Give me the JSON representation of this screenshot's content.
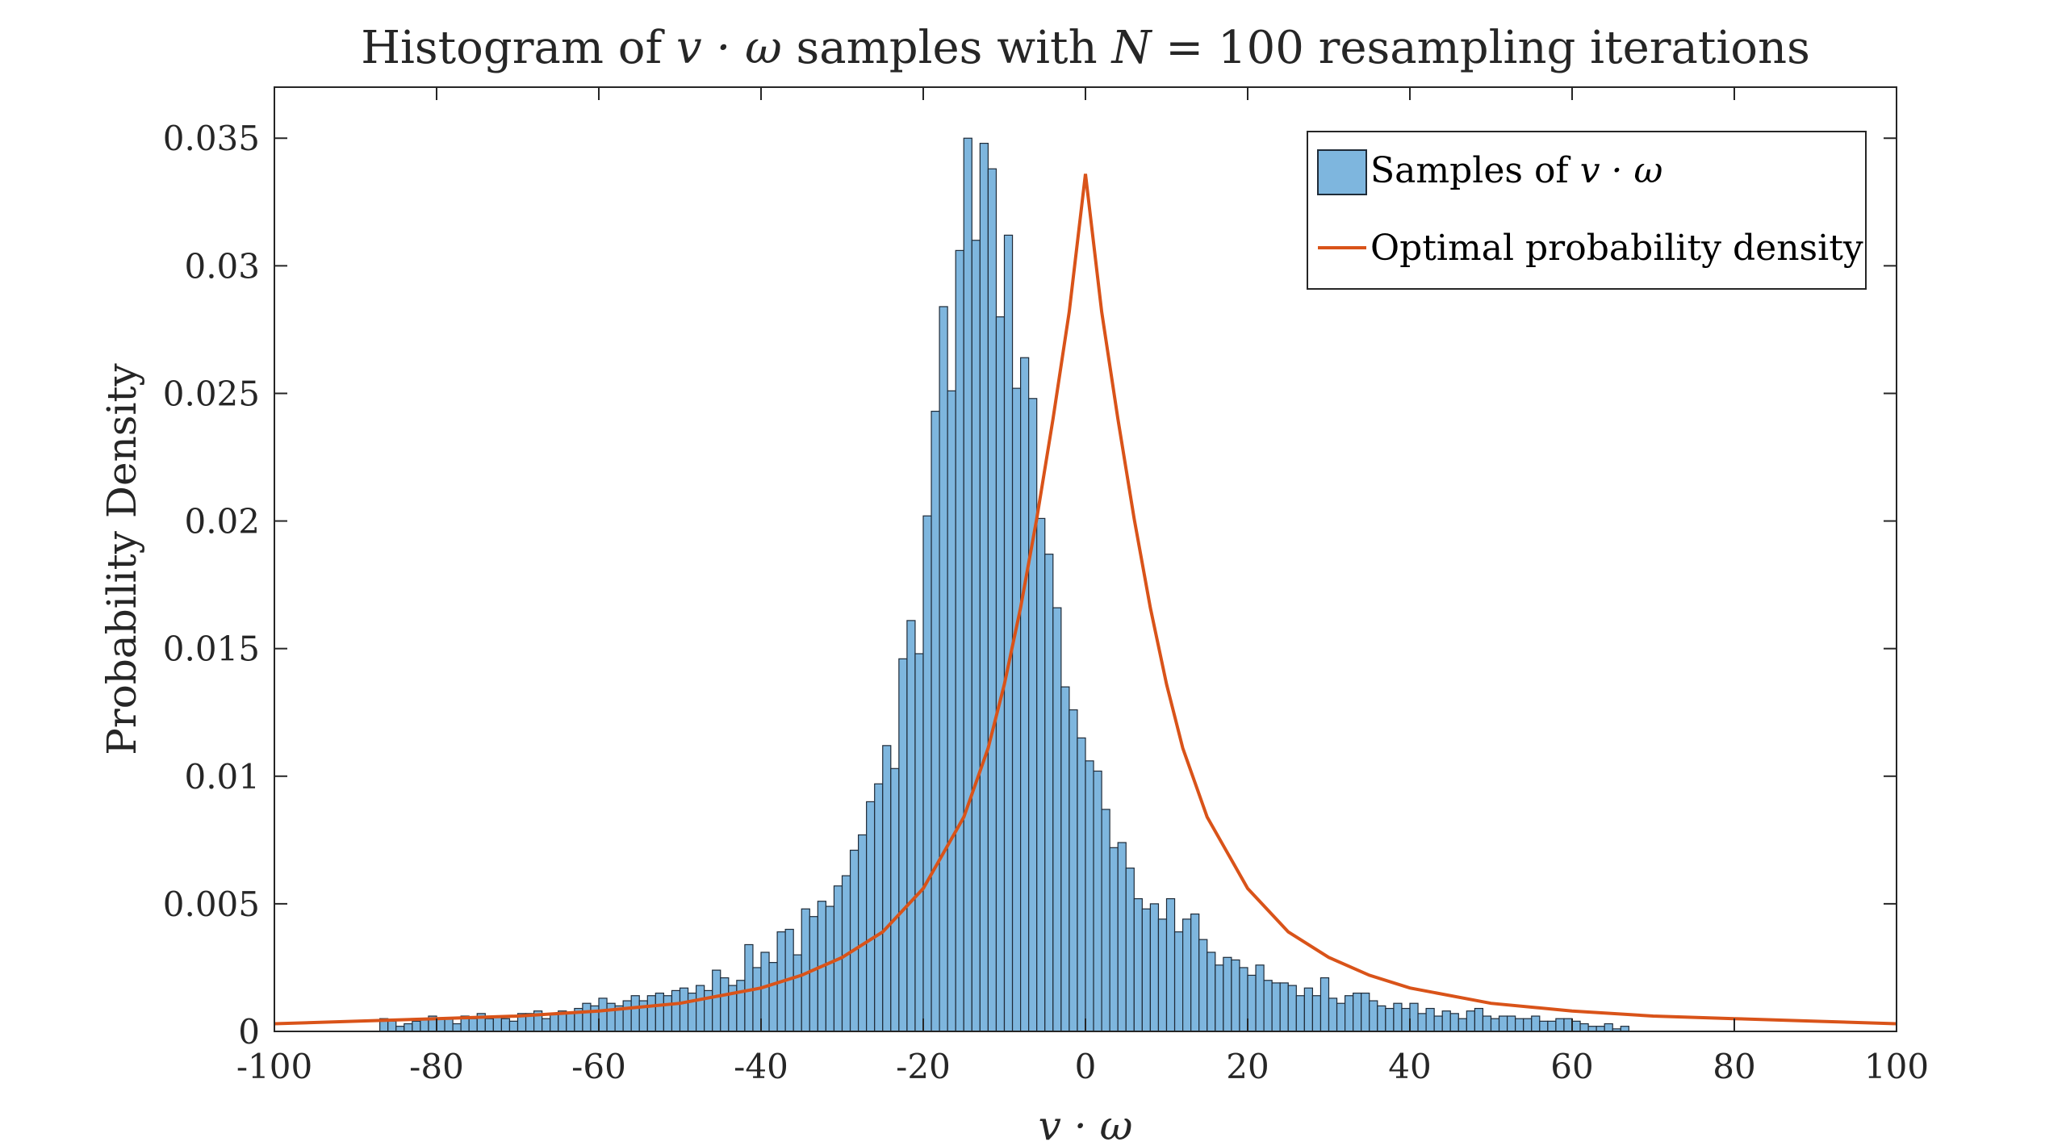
{
  "chart_data": {
    "type": "bar",
    "title_parts": [
      "Histogram of ",
      "v · ω",
      " samples with ",
      "N",
      " = 100 resampling iterations"
    ],
    "xlabel": "v · ω",
    "ylabel": "Probability Density",
    "xlim": [
      -100,
      100
    ],
    "ylim": [
      0,
      0.037
    ],
    "xticks": [
      -100,
      -80,
      -60,
      -40,
      -20,
      0,
      20,
      40,
      60,
      80,
      100
    ],
    "yticks": [
      0,
      0.005,
      0.01,
      0.015,
      0.02,
      0.025,
      0.03,
      0.035
    ],
    "ytick_labels": [
      "0",
      "0.005",
      "0.01",
      "0.015",
      "0.02",
      "0.025",
      "0.03",
      "0.035"
    ],
    "grid": false,
    "legend_position": "top-right",
    "series": [
      {
        "name": "Samples of v · ω",
        "legend_parts": [
          "Samples of ",
          "v · ω"
        ],
        "kind": "histogram",
        "bin_width": 1.0,
        "bin_start": -87,
        "values": [
          0.0005,
          0.0004,
          0.0002,
          0.0003,
          0.0004,
          0.0005,
          0.0006,
          0.0005,
          0.0005,
          0.0003,
          0.0006,
          0.0005,
          0.0007,
          0.0005,
          0.0006,
          0.0005,
          0.0004,
          0.0007,
          0.0007,
          0.0008,
          0.0005,
          0.0007,
          0.0008,
          0.0007,
          0.0009,
          0.0011,
          0.001,
          0.0013,
          0.0011,
          0.001,
          0.0012,
          0.0014,
          0.0012,
          0.0014,
          0.0015,
          0.0014,
          0.0016,
          0.0017,
          0.0015,
          0.0018,
          0.0016,
          0.0024,
          0.0021,
          0.0018,
          0.002,
          0.0034,
          0.0025,
          0.0031,
          0.0027,
          0.0039,
          0.004,
          0.003,
          0.0048,
          0.0045,
          0.0051,
          0.0049,
          0.0057,
          0.0061,
          0.0071,
          0.0077,
          0.009,
          0.0097,
          0.0112,
          0.0103,
          0.0146,
          0.0161,
          0.0148,
          0.0202,
          0.0243,
          0.0284,
          0.0251,
          0.0306,
          0.035,
          0.031,
          0.0348,
          0.0338,
          0.028,
          0.0312,
          0.0252,
          0.0264,
          0.0248,
          0.0201,
          0.0187,
          0.0166,
          0.0135,
          0.0126,
          0.0115,
          0.0106,
          0.0102,
          0.0087,
          0.0072,
          0.0074,
          0.0064,
          0.0052,
          0.0048,
          0.005,
          0.0044,
          0.0052,
          0.0039,
          0.0044,
          0.0046,
          0.0036,
          0.0031,
          0.0026,
          0.0029,
          0.0028,
          0.0025,
          0.0022,
          0.0026,
          0.002,
          0.0019,
          0.0019,
          0.0018,
          0.0014,
          0.0017,
          0.0014,
          0.0021,
          0.0013,
          0.0011,
          0.0014,
          0.0015,
          0.0015,
          0.0012,
          0.001,
          0.0009,
          0.0011,
          0.0009,
          0.0011,
          0.0007,
          0.0009,
          0.0006,
          0.0008,
          0.0007,
          0.0005,
          0.0008,
          0.0009,
          0.0006,
          0.0005,
          0.0006,
          0.0006,
          0.0005,
          0.0005,
          0.0006,
          0.0004,
          0.0004,
          0.0005,
          0.0005,
          0.0004,
          0.0003,
          0.0002,
          0.0002,
          0.0003,
          0.0001,
          0.0002
        ]
      },
      {
        "name": "Optimal probability density",
        "kind": "line",
        "x": [
          -100,
          -90,
          -80,
          -70,
          -60,
          -50,
          -40,
          -35,
          -30,
          -25,
          -20,
          -15,
          -12,
          -10,
          -8,
          -6,
          -4,
          -2,
          0,
          2,
          4,
          6,
          8,
          10,
          12,
          15,
          20,
          25,
          30,
          35,
          40,
          50,
          60,
          70,
          80,
          90,
          100
        ],
        "values": [
          0.0003,
          0.0004,
          0.0005,
          0.0006,
          0.0008,
          0.0011,
          0.0017,
          0.0022,
          0.0029,
          0.0039,
          0.0056,
          0.0084,
          0.0111,
          0.0136,
          0.0166,
          0.0201,
          0.024,
          0.0282,
          0.0336,
          0.0282,
          0.024,
          0.0201,
          0.0166,
          0.0136,
          0.0111,
          0.0084,
          0.0056,
          0.0039,
          0.0029,
          0.0022,
          0.0017,
          0.0011,
          0.0008,
          0.0006,
          0.0005,
          0.0004,
          0.0003
        ]
      }
    ],
    "colors": {
      "bar_fill": "#7EB6DE",
      "bar_edge": "#1F2B38",
      "line": "#D95319",
      "axis": "#262626",
      "text": "#262626"
    }
  }
}
